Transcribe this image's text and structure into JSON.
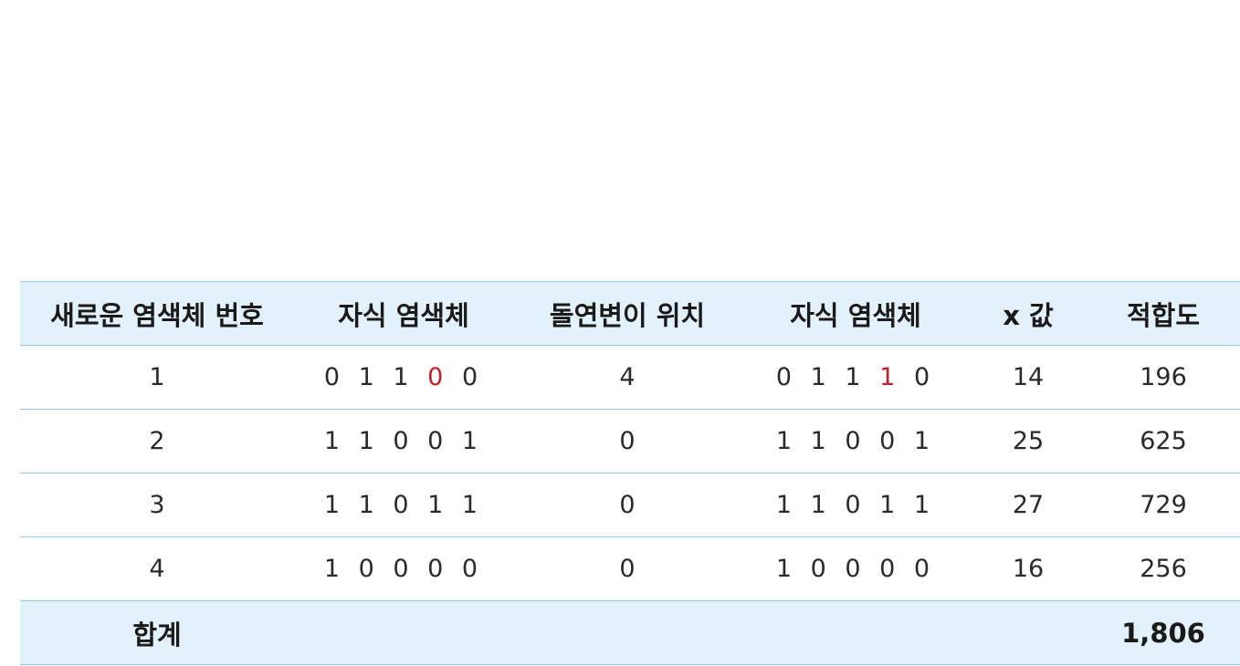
{
  "colors": {
    "header_background": "#e3f2fa",
    "row_divider": "#8fcbe6",
    "mutated_bit": "#c0202a",
    "text": "#222222"
  },
  "table": {
    "headers": [
      "새로운 염색체 번호",
      "자식 염색체",
      "돌연변이 위치",
      "자식 염색체",
      "x 값",
      "적합도"
    ],
    "rows": [
      {
        "number": "1",
        "child_before": {
          "prefix": "0 1 1 ",
          "mutated": "0",
          "suffix": " 0"
        },
        "mutation_position": "4",
        "child_after": {
          "prefix": "0 1 1 ",
          "mutated": "1",
          "suffix": " 0"
        },
        "x_value": "14",
        "fitness": "196"
      },
      {
        "number": "2",
        "child_before": {
          "prefix": "1 1 0 0 1",
          "mutated": "",
          "suffix": ""
        },
        "mutation_position": "0",
        "child_after": {
          "prefix": "1 1 0 0 1",
          "mutated": "",
          "suffix": ""
        },
        "x_value": "25",
        "fitness": "625"
      },
      {
        "number": "3",
        "child_before": {
          "prefix": "1 1 0 1 1",
          "mutated": "",
          "suffix": ""
        },
        "mutation_position": "0",
        "child_after": {
          "prefix": "1 1 0 1 1",
          "mutated": "",
          "suffix": ""
        },
        "x_value": "27",
        "fitness": "729"
      },
      {
        "number": "4",
        "child_before": {
          "prefix": "1 0 0 0 0",
          "mutated": "",
          "suffix": ""
        },
        "mutation_position": "0",
        "child_after": {
          "prefix": "1 0 0 0 0",
          "mutated": "",
          "suffix": ""
        },
        "x_value": "16",
        "fitness": "256"
      }
    ],
    "footer": {
      "label": "합계",
      "total_fitness": "1,806"
    }
  }
}
